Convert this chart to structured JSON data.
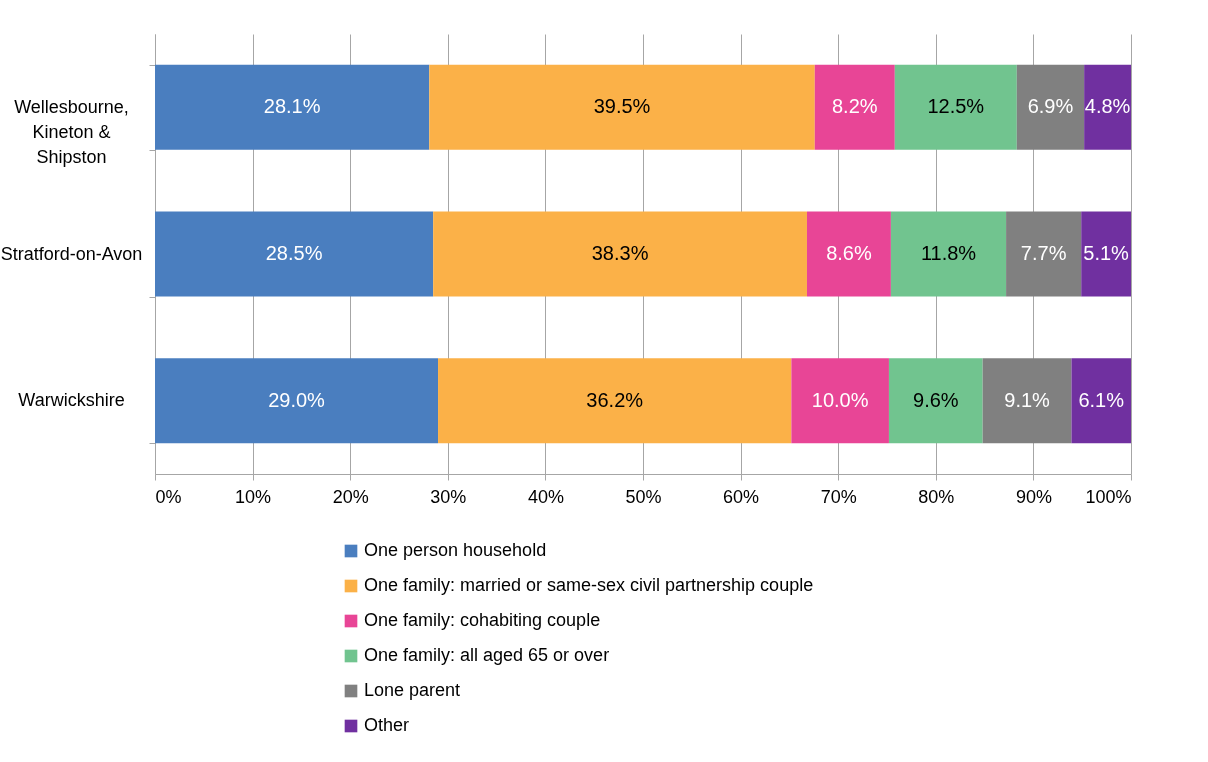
{
  "chart_data": {
    "type": "bar",
    "orientation": "horizontal",
    "stacked": true,
    "categories": [
      "Wellesbourne, Kineton & Shipston",
      "Stratford-on-Avon",
      "Warwickshire"
    ],
    "series": [
      {
        "name": "One person household",
        "color": "#4a7ebf",
        "values": [
          28.1,
          28.5,
          29.0
        ],
        "value_labels": [
          "28.1%",
          "28.5%",
          "29.0%"
        ]
      },
      {
        "name": "One family: married or same-sex civil partnership couple",
        "color": "#fbb148",
        "values": [
          39.5,
          38.3,
          36.2
        ],
        "value_labels": [
          "39.5%",
          "38.3%",
          "36.2%"
        ]
      },
      {
        "name": "One family: cohabiting couple",
        "color": "#e84596",
        "values": [
          8.2,
          8.6,
          10.0
        ],
        "value_labels": [
          "8.2%",
          "8.6%",
          "10.0%"
        ]
      },
      {
        "name": "One family: all aged 65 or over",
        "color": "#71c48f",
        "values": [
          12.5,
          11.8,
          9.6
        ],
        "value_labels": [
          "12.5%",
          "11.8%",
          "9.6%"
        ]
      },
      {
        "name": "Lone parent",
        "color": "#808080",
        "values": [
          6.9,
          7.7,
          9.1
        ],
        "value_labels": [
          "6.9%",
          "7.7%",
          "9.1%"
        ]
      },
      {
        "name": "Other",
        "color": "#7030a0",
        "values": [
          4.8,
          5.1,
          6.1
        ],
        "value_labels": [
          "4.8%",
          "5.1%",
          "6.1%"
        ]
      }
    ],
    "xlim": [
      0,
      100
    ],
    "xticks": [
      {
        "value": 0,
        "label": "0%"
      },
      {
        "value": 10,
        "label": "10%"
      },
      {
        "value": 20,
        "label": "20%"
      },
      {
        "value": 30,
        "label": "30%"
      },
      {
        "value": 40,
        "label": "40%"
      },
      {
        "value": 50,
        "label": "50%"
      },
      {
        "value": 60,
        "label": "60%"
      },
      {
        "value": 70,
        "label": "70%"
      },
      {
        "value": 80,
        "label": "80%"
      },
      {
        "value": 90,
        "label": "90%"
      },
      {
        "value": 100,
        "label": "100%"
      }
    ],
    "grid": "x",
    "legend": "bottom"
  }
}
